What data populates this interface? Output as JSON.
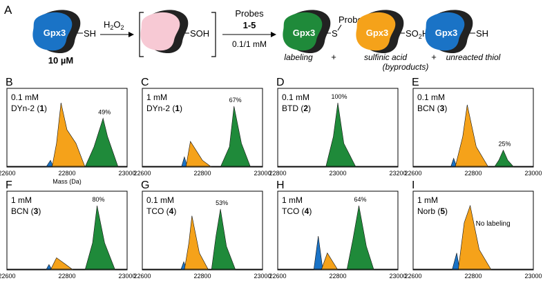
{
  "figure_label": "A",
  "scheme": {
    "protein_label": "Gpx3",
    "start_group": "SH",
    "start_conc": "10 µM",
    "oxidant_main": "H",
    "oxidant_sub1": "2",
    "oxidant_mid": "O",
    "oxidant_sub2": "2",
    "intermediate_group": "SOH",
    "probes_title": "Probes",
    "probes_ids": "1-5",
    "probes_conc": "0.1/1 mM",
    "labeled_s": "S",
    "labeled_probe": "Probe",
    "sulfinic_group_main": "SO",
    "sulfinic_group_sub": "2",
    "sulfinic_group_end": "H",
    "thiol_group": "SH",
    "caption_labeling": "labeling",
    "caption_sulfinic": "sulfinic acid",
    "caption_byproducts": "(byproducts)",
    "caption_thiol": "unreacted thiol",
    "plus": "+"
  },
  "colors": {
    "blue": "#1a73c6",
    "orange": "#f5a21a",
    "green": "#1f8a3a",
    "pink": "#f7c9d4",
    "dark": "#222222"
  },
  "panels": [
    {
      "label": "B",
      "conc": "0.1 mM",
      "probe": "DYn-2",
      "num": "1",
      "pct": "49%",
      "ticks": [
        "22600",
        "22800",
        "23000"
      ],
      "xlabel": "Mass (Da)"
    },
    {
      "label": "C",
      "conc": "1 mM",
      "probe": "DYn-2",
      "num": "1",
      "pct": "67%",
      "ticks": [
        "22600",
        "22800",
        "23000"
      ],
      "xlabel": ""
    },
    {
      "label": "D",
      "conc": "0.1 mM",
      "probe": "BTD",
      "num": "2",
      "pct": "100%",
      "ticks": [
        "22800",
        "23000",
        "23200"
      ],
      "xlabel": ""
    },
    {
      "label": "E",
      "conc": "0.1 mM",
      "probe": "BCN",
      "num": "3",
      "pct": "25%",
      "ticks": [
        "22600",
        "22800",
        "23000"
      ],
      "xlabel": ""
    },
    {
      "label": "F",
      "conc": "1 mM",
      "probe": "BCN",
      "num": "3",
      "pct": "80%",
      "ticks": [
        "22600",
        "22800",
        "23000"
      ],
      "xlabel": ""
    },
    {
      "label": "G",
      "conc": "0.1 mM",
      "probe": "TCO",
      "num": "4",
      "pct": "53%",
      "ticks": [
        "22600",
        "22800",
        "23000"
      ],
      "xlabel": ""
    },
    {
      "label": "H",
      "conc": "1 mM",
      "probe": "TCO",
      "num": "4",
      "pct": "64%",
      "ticks": [
        "22600",
        "22800",
        "23000"
      ],
      "xlabel": ""
    },
    {
      "label": "I",
      "conc": "1 mM",
      "probe": "Norb",
      "num": "5",
      "pct": "No labeling",
      "ticks": [
        "22600",
        "22800",
        "23000"
      ],
      "xlabel": ""
    }
  ],
  "chart_data": [
    {
      "type": "area",
      "panel": "B",
      "xlabel": "Mass (Da)",
      "xlim": [
        22600,
        23000
      ],
      "ylim": [
        0,
        1
      ],
      "series": [
        {
          "name": "unreacted thiol",
          "color": "blue",
          "x": [
            22730,
            22745,
            22755
          ],
          "y": [
            0,
            0.1,
            0
          ]
        },
        {
          "name": "sulfinic acid",
          "color": "orange",
          "x": [
            22750,
            22765,
            22780,
            22800,
            22830,
            22860
          ],
          "y": [
            0,
            0.35,
            0.95,
            0.55,
            0.35,
            0
          ]
        },
        {
          "name": "labeling",
          "color": "green",
          "x": [
            22860,
            22890,
            22920,
            22935,
            22970
          ],
          "y": [
            0,
            0.3,
            0.72,
            0.45,
            0
          ]
        }
      ]
    },
    {
      "type": "area",
      "panel": "C",
      "xlim": [
        22600,
        23000
      ],
      "ylim": [
        0,
        1
      ],
      "series": [
        {
          "name": "unreacted thiol",
          "color": "blue",
          "x": [
            22730,
            22740,
            22750
          ],
          "y": [
            0,
            0.15,
            0
          ]
        },
        {
          "name": "sulfinic acid",
          "color": "orange",
          "x": [
            22745,
            22760,
            22800,
            22830
          ],
          "y": [
            0,
            0.38,
            0.1,
            0
          ]
        },
        {
          "name": "labeling",
          "color": "green",
          "x": [
            22860,
            22890,
            22905,
            22930,
            22960
          ],
          "y": [
            0,
            0.3,
            0.9,
            0.35,
            0
          ]
        }
      ]
    },
    {
      "type": "area",
      "panel": "D",
      "xlim": [
        22800,
        23200
      ],
      "ylim": [
        0,
        1
      ],
      "series": [
        {
          "name": "labeling",
          "color": "green",
          "x": [
            22960,
            22985,
            23000,
            23020,
            23060
          ],
          "y": [
            0,
            0.45,
            0.95,
            0.35,
            0
          ]
        }
      ]
    },
    {
      "type": "area",
      "panel": "E",
      "xlim": [
        22600,
        23000
      ],
      "ylim": [
        0,
        1
      ],
      "series": [
        {
          "name": "unreacted thiol",
          "color": "blue",
          "x": [
            22725,
            22735,
            22745
          ],
          "y": [
            0,
            0.13,
            0
          ]
        },
        {
          "name": "sulfinic acid",
          "color": "orange",
          "x": [
            22740,
            22765,
            22780,
            22810,
            22850
          ],
          "y": [
            0,
            0.45,
            0.92,
            0.3,
            0
          ]
        },
        {
          "name": "labeling",
          "color": "green",
          "x": [
            22870,
            22885,
            22900,
            22915,
            22935
          ],
          "y": [
            0,
            0.1,
            0.25,
            0.1,
            0
          ]
        }
      ]
    },
    {
      "type": "area",
      "panel": "F",
      "xlim": [
        22600,
        23000
      ],
      "ylim": [
        0,
        1
      ],
      "series": [
        {
          "name": "unreacted thiol",
          "color": "blue",
          "x": [
            22730,
            22740,
            22750
          ],
          "y": [
            0,
            0.08,
            0
          ]
        },
        {
          "name": "sulfinic acid",
          "color": "orange",
          "x": [
            22745,
            22765,
            22790,
            22820
          ],
          "y": [
            0,
            0.18,
            0.1,
            0
          ]
        },
        {
          "name": "labeling",
          "color": "green",
          "x": [
            22860,
            22885,
            22900,
            22925,
            22960
          ],
          "y": [
            0,
            0.4,
            0.95,
            0.4,
            0
          ]
        }
      ]
    },
    {
      "type": "area",
      "panel": "G",
      "xlim": [
        22600,
        23000
      ],
      "ylim": [
        0,
        1
      ],
      "series": [
        {
          "name": "unreacted thiol",
          "color": "blue",
          "x": [
            22728,
            22738,
            22748
          ],
          "y": [
            0,
            0.12,
            0
          ]
        },
        {
          "name": "sulfinic acid",
          "color": "orange",
          "x": [
            22740,
            22755,
            22765,
            22790,
            22820
          ],
          "y": [
            0,
            0.4,
            0.8,
            0.25,
            0
          ]
        },
        {
          "name": "labeling",
          "color": "green",
          "x": [
            22830,
            22845,
            22860,
            22880,
            22910
          ],
          "y": [
            0,
            0.5,
            0.9,
            0.35,
            0
          ]
        }
      ]
    },
    {
      "type": "area",
      "panel": "H",
      "xlim": [
        22600,
        23000
      ],
      "ylim": [
        0,
        1
      ],
      "series": [
        {
          "name": "unreacted thiol",
          "color": "blue",
          "x": [
            22720,
            22735,
            22750
          ],
          "y": [
            0,
            0.5,
            0
          ]
        },
        {
          "name": "sulfinic acid",
          "color": "orange",
          "x": [
            22745,
            22765,
            22800
          ],
          "y": [
            0,
            0.25,
            0
          ]
        },
        {
          "name": "labeling",
          "color": "green",
          "x": [
            22830,
            22850,
            22870,
            22895,
            22920
          ],
          "y": [
            0,
            0.45,
            0.95,
            0.35,
            0
          ]
        }
      ]
    },
    {
      "type": "area",
      "panel": "I",
      "xlim": [
        22600,
        23000
      ],
      "ylim": [
        0,
        1
      ],
      "series": [
        {
          "name": "unreacted thiol",
          "color": "blue",
          "x": [
            22730,
            22745,
            22755
          ],
          "y": [
            0,
            0.25,
            0
          ]
        },
        {
          "name": "sulfinic acid",
          "color": "orange",
          "x": [
            22750,
            22770,
            22790,
            22820,
            22860
          ],
          "y": [
            0,
            0.7,
            0.95,
            0.3,
            0
          ]
        }
      ]
    }
  ]
}
